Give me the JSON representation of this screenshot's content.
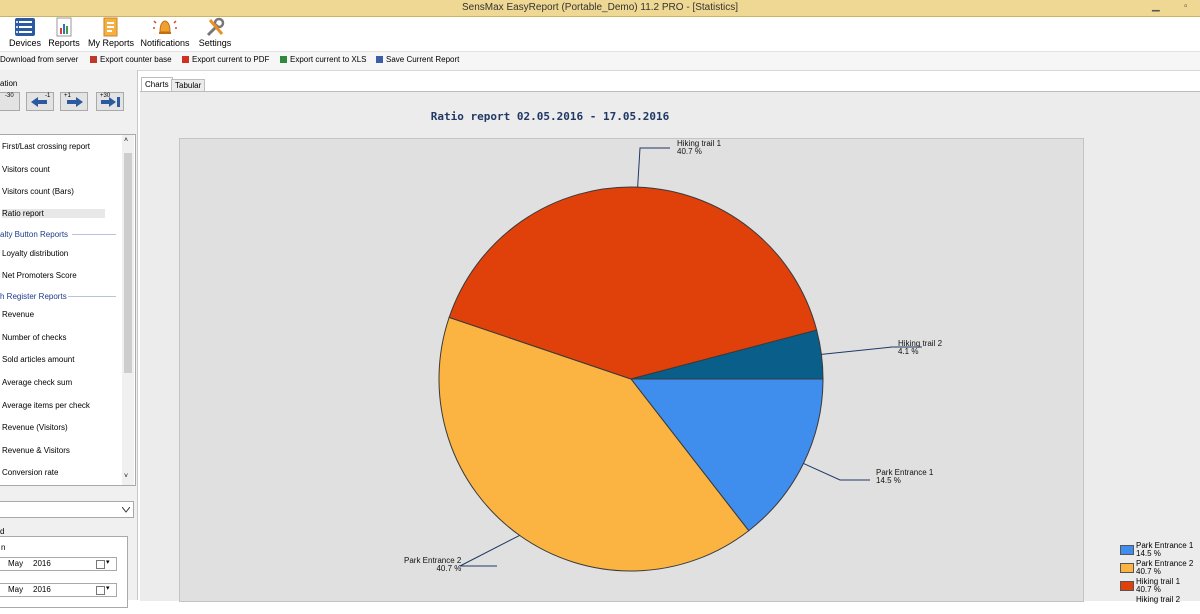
{
  "window": {
    "title": "SensMax EasyReport (Portable_Demo) 11.2 PRO - [Statistics]"
  },
  "ribbon": [
    {
      "label": "Devices",
      "icon": "devices-icon"
    },
    {
      "label": "Reports",
      "icon": "reports-icon"
    },
    {
      "label": "My Reports",
      "icon": "my-reports-icon"
    },
    {
      "label": "Notifications",
      "icon": "notifications-icon"
    },
    {
      "label": "Settings",
      "icon": "settings-icon"
    }
  ],
  "toolbar": [
    {
      "label": "Download from server",
      "icon": "download-icon"
    },
    {
      "label": "Export counter base",
      "icon": "export-base-icon"
    },
    {
      "label": "Export current to PDF",
      "icon": "pdf-icon"
    },
    {
      "label": "Export current to XLS",
      "icon": "xls-icon"
    },
    {
      "label": "Save Current Report",
      "icon": "save-icon"
    }
  ],
  "left": {
    "navigation_label": "ation",
    "nav_buttons": [
      "-30",
      "-1",
      "+1",
      "+30"
    ],
    "report_items": [
      {
        "label": "First/Last crossing report"
      },
      {
        "label": "Visitors count"
      },
      {
        "label": "Visitors count (Bars)"
      },
      {
        "label": "Ratio report",
        "selected": true
      },
      {
        "header": "alty Button Reports"
      },
      {
        "label": "Loyalty distribution"
      },
      {
        "label": "Net Promoters Score"
      },
      {
        "header": "h Register Reports"
      },
      {
        "label": "Revenue"
      },
      {
        "label": "Number of checks"
      },
      {
        "label": "Sold articles amount"
      },
      {
        "label": "Average check sum"
      },
      {
        "label": "Average items per check"
      },
      {
        "label": "Revenue (Visitors)"
      },
      {
        "label": "Revenue & Visitors"
      },
      {
        "label": "Conversion rate"
      }
    ],
    "period_label": "d",
    "from_label": "n",
    "date_rows": [
      {
        "month": "May",
        "year": "2016"
      },
      {
        "month": "May",
        "year": "2016"
      }
    ]
  },
  "tabs": [
    "Charts",
    "Tabular"
  ],
  "active_tab": "Charts",
  "chart_data": {
    "type": "pie",
    "title": "Ratio report 02.05.2016 - 17.05.2016",
    "slices": [
      {
        "name": "Park Entrance 1",
        "value": 14.5,
        "label": "14.5 %",
        "color": "#3f8ded"
      },
      {
        "name": "Park Entrance 2",
        "value": 40.7,
        "label": "40.7 %",
        "color": "#fbb441"
      },
      {
        "name": "Hiking trail 1",
        "value": 40.7,
        "label": "40.7 %",
        "color": "#e0400a"
      },
      {
        "name": "Hiking trail 2",
        "value": 4.1,
        "label": "4.1 %",
        "color": "#0a5f8a"
      }
    ],
    "legend_placement": "bottom-right",
    "legend_partial_label": "Hiking trail 2"
  }
}
